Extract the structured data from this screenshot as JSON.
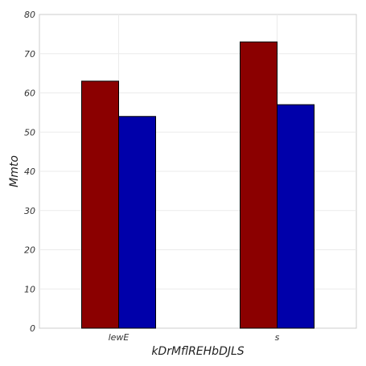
{
  "chart_data": {
    "type": "bar",
    "title": "",
    "xlabel": "kDrMflREHbDJLS",
    "ylabel": "Mmto",
    "categories": [
      "lewE",
      "s"
    ],
    "series": [
      {
        "color": "#8b0000",
        "values": [
          63,
          73
        ]
      },
      {
        "color": "#0000aa",
        "values": [
          54,
          57
        ]
      }
    ],
    "ylim": [
      0,
      80
    ],
    "yticks": [
      0,
      10,
      20,
      30,
      40,
      50,
      60,
      70,
      80
    ],
    "grid": true,
    "legend": "none"
  }
}
